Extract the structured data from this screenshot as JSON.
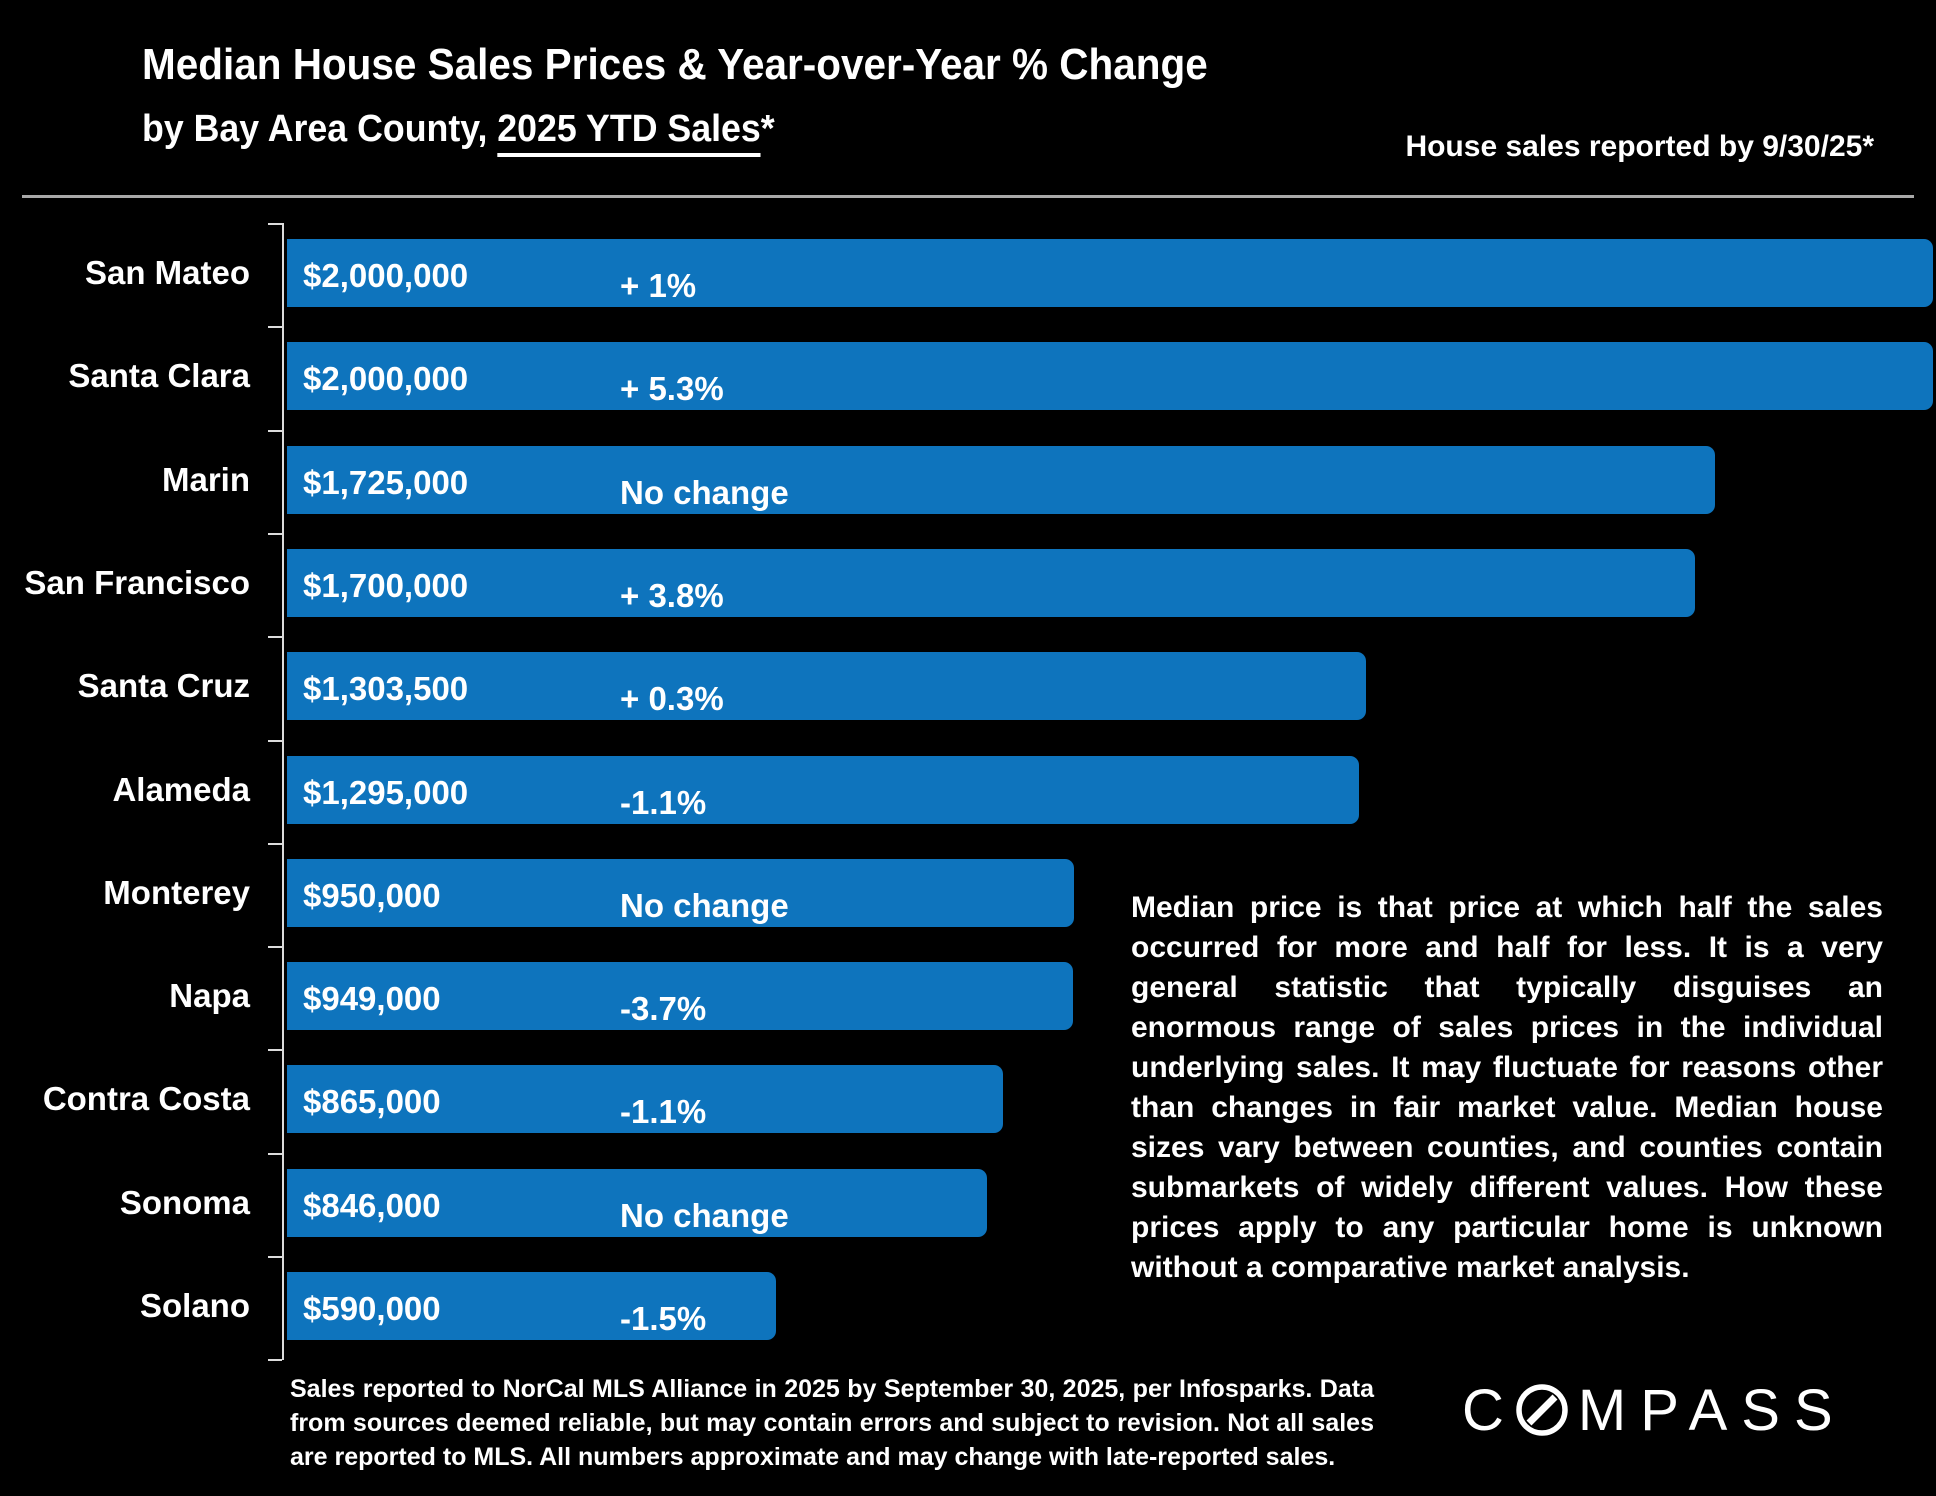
{
  "header": {
    "title": "Median House Sales Prices & Year-over-Year % Change",
    "subtitle_prefix": "by Bay Area County, ",
    "subtitle_underlined": "2025 YTD Sales",
    "subtitle_suffix": "*",
    "right_note": "House sales reported by 9/30/25*"
  },
  "chart_data": {
    "type": "bar",
    "orientation": "horizontal",
    "title": "Median House Sales Prices & Year-over-Year % Change by Bay Area County, 2025 YTD Sales",
    "unit": "USD",
    "xlim": [
      0,
      2000000
    ],
    "grid": false,
    "bar_color": "#0e74bd",
    "categories": [
      "San Mateo",
      "Santa Clara",
      "Marin",
      "San Francisco",
      "Santa Cruz",
      "Alameda",
      "Monterey",
      "Napa",
      "Contra Costa",
      "Sonoma",
      "Solano"
    ],
    "values": [
      2000000,
      2000000,
      1725000,
      1700000,
      1303500,
      1295000,
      950000,
      949000,
      865000,
      846000,
      590000
    ],
    "value_labels": [
      "$2,000,000",
      "$2,000,000",
      "$1,725,000",
      "$1,700,000",
      "$1,303,500",
      "$1,295,000",
      "$950,000",
      "$949,000",
      "$865,000",
      "$846,000",
      "$590,000"
    ],
    "change_labels": [
      "+ 1%",
      "+ 5.3%",
      "No change",
      "+ 3.8%",
      "+ 0.3%",
      "-1.1%",
      "No change",
      "-3.7%",
      "-1.1%",
      "No change",
      "-1.5%"
    ]
  },
  "annotation": "Median price is that price at which half the sales occurred for more and half for less. It is a very general statistic that typically disguises an enormous range of sales prices in the individual underlying sales. It may fluctuate for reasons other than changes in fair market value. Median house sizes vary between counties, and counties contain submarkets of widely different values. How these prices apply to any particular home is unknown without a comparative market analysis.",
  "footnote": "Sales reported to NorCal MLS Alliance in 2025 by September 30, 2025, per Infosparks. Data from sources deemed reliable, but may contain errors and subject to revision. Not all sales are reported to MLS. All numbers approximate and may change with late-reported sales.",
  "logo": {
    "first_letter": "C",
    "rest": "MPASS"
  }
}
